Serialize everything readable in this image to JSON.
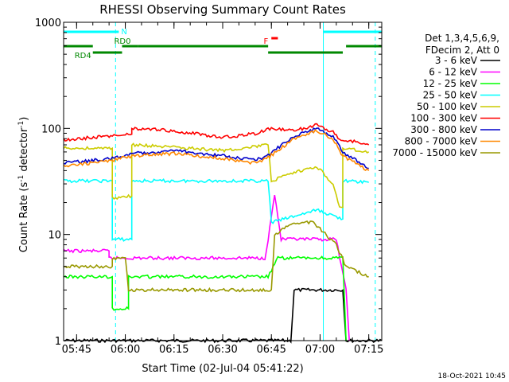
{
  "chart_data": {
    "type": "line",
    "title": "RHESSI Observing Summary Count Rates",
    "xlabel": "Start Time (02-Jul-04 05:41:22)",
    "ylabel_main": "Count Rate (s",
    "ylabel_sup1": "-1",
    "ylabel_mid": " detector",
    "ylabel_sup2": "-1",
    "ylabel_end": ")",
    "y_scale": "log",
    "ylim": [
      1,
      1000
    ],
    "xlim": [
      "05:41",
      "07:19"
    ],
    "x_ticks": [
      "05:45",
      "06:00",
      "06:15",
      "06:30",
      "06:45",
      "07:00",
      "07:15"
    ],
    "y_ticks": [
      "1",
      "10",
      "100",
      "1000"
    ],
    "legend_header": [
      "Det 1,3,4,5,6,9,",
      "FDecim 2, Att 0"
    ],
    "legend_position": "right",
    "timestamp": "18-Oct-2021 10:45",
    "series": [
      {
        "name": "3 - 6 keV",
        "color": "#000000",
        "points": [
          [
            "05:41",
            1
          ],
          [
            "06:51",
            1
          ],
          [
            "06:52",
            3
          ],
          [
            "07:07",
            3
          ],
          [
            "07:08",
            1
          ],
          [
            "07:19",
            1
          ]
        ]
      },
      {
        "name": "6 - 12 keV",
        "color": "#ff00ff",
        "points": [
          [
            "05:41",
            7
          ],
          [
            "05:55",
            7
          ],
          [
            "05:55",
            6
          ],
          [
            "06:43",
            6
          ],
          [
            "06:44",
            9
          ],
          [
            "06:46",
            24
          ],
          [
            "06:48",
            9
          ],
          [
            "07:05",
            9
          ],
          [
            "07:08",
            3
          ],
          [
            "07:09",
            1
          ]
        ]
      },
      {
        "name": "12 - 25 keV",
        "color": "#00ff00",
        "points": [
          [
            "05:41",
            4
          ],
          [
            "05:56",
            4
          ],
          [
            "05:56",
            2
          ],
          [
            "06:01",
            2
          ],
          [
            "06:01",
            4
          ],
          [
            "06:44",
            4
          ],
          [
            "06:47",
            6
          ],
          [
            "07:02",
            6
          ],
          [
            "07:07",
            6
          ],
          [
            "07:08",
            1
          ]
        ]
      },
      {
        "name": "25 - 50 keV",
        "color": "#00ffff",
        "points": [
          [
            "05:41",
            32
          ],
          [
            "05:56",
            32
          ],
          [
            "05:56",
            9
          ],
          [
            "06:02",
            9
          ],
          [
            "06:02",
            32
          ],
          [
            "06:44",
            32
          ],
          [
            "06:45",
            13
          ],
          [
            "06:59",
            17
          ],
          [
            "07:07",
            14
          ],
          [
            "07:07",
            32
          ],
          [
            "07:15",
            31
          ]
        ]
      },
      {
        "name": "50 - 100 keV",
        "color": "#cccc00",
        "points": [
          [
            "05:41",
            65
          ],
          [
            "05:56",
            65
          ],
          [
            "05:56",
            22
          ],
          [
            "06:02",
            23
          ],
          [
            "06:02",
            70
          ],
          [
            "06:30",
            62
          ],
          [
            "06:44",
            70
          ],
          [
            "06:45",
            32
          ],
          [
            "06:52",
            38
          ],
          [
            "06:59",
            44
          ],
          [
            "07:04",
            30
          ],
          [
            "07:06",
            18
          ],
          [
            "07:07",
            18
          ],
          [
            "07:07",
            65
          ],
          [
            "07:15",
            60
          ]
        ]
      },
      {
        "name": "100 - 300 keV",
        "color": "#ff0000",
        "points": [
          [
            "05:41",
            78
          ],
          [
            "05:56",
            85
          ],
          [
            "06:02",
            88
          ],
          [
            "06:02",
            100
          ],
          [
            "06:15",
            95
          ],
          [
            "06:30",
            82
          ],
          [
            "06:41",
            90
          ],
          [
            "06:44",
            100
          ],
          [
            "06:52",
            95
          ],
          [
            "06:59",
            108
          ],
          [
            "07:04",
            92
          ],
          [
            "07:07",
            75
          ],
          [
            "07:08",
            78
          ],
          [
            "07:15",
            70
          ]
        ]
      },
      {
        "name": "300 - 800 keV",
        "color": "#0000cc",
        "points": [
          [
            "05:41",
            47
          ],
          [
            "05:56",
            52
          ],
          [
            "06:02",
            58
          ],
          [
            "06:15",
            62
          ],
          [
            "06:30",
            55
          ],
          [
            "06:40",
            50
          ],
          [
            "06:44",
            56
          ],
          [
            "06:52",
            85
          ],
          [
            "06:59",
            100
          ],
          [
            "07:04",
            85
          ],
          [
            "07:07",
            60
          ],
          [
            "07:15",
            42
          ]
        ]
      },
      {
        "name": "800 - 7000 keV",
        "color": "#ff8800",
        "points": [
          [
            "05:41",
            44
          ],
          [
            "05:56",
            50
          ],
          [
            "06:02",
            55
          ],
          [
            "06:15",
            58
          ],
          [
            "06:30",
            52
          ],
          [
            "06:40",
            47
          ],
          [
            "06:44",
            53
          ],
          [
            "06:52",
            80
          ],
          [
            "06:59",
            95
          ],
          [
            "07:04",
            80
          ],
          [
            "07:07",
            55
          ],
          [
            "07:15",
            40
          ]
        ]
      },
      {
        "name": "7000 - 15000 keV",
        "color": "#999900",
        "points": [
          [
            "05:41",
            5
          ],
          [
            "05:56",
            5
          ],
          [
            "05:56",
            6
          ],
          [
            "06:00",
            6
          ],
          [
            "06:01",
            3
          ],
          [
            "06:45",
            3
          ],
          [
            "06:46",
            10
          ],
          [
            "06:52",
            13
          ],
          [
            "06:58",
            13
          ],
          [
            "07:05",
            8
          ],
          [
            "07:08",
            5
          ],
          [
            "07:15",
            4
          ]
        ]
      }
    ],
    "attenuator_bars": [
      {
        "label": "N",
        "color": "#00ffff",
        "segments": [
          [
            "05:41",
            "05:58"
          ],
          [
            "07:01",
            "07:19"
          ]
        ]
      },
      {
        "label": "F",
        "color": "#ff0000",
        "segments": [
          [
            "06:45",
            "06:47"
          ]
        ]
      },
      {
        "label": "RD0",
        "color": "#008800",
        "segments": [
          [
            "05:41",
            "05:50"
          ],
          [
            "05:59",
            "06:04"
          ],
          [
            "06:04",
            "06:44"
          ],
          [
            "07:08",
            "07:19"
          ]
        ]
      },
      {
        "label": "RD4",
        "color": "#008800",
        "segments": [
          [
            "05:50",
            "05:59"
          ],
          [
            "06:44",
            "07:07"
          ]
        ]
      }
    ],
    "vertical_markers": [
      {
        "time": "05:41",
        "color": "#00ffff",
        "style": "solid"
      },
      {
        "time": "05:57",
        "color": "#00ffff",
        "style": "dashed"
      },
      {
        "time": "07:01",
        "color": "#00ffff",
        "style": "solid"
      },
      {
        "time": "07:17",
        "color": "#00ffff",
        "style": "dashed"
      }
    ]
  }
}
